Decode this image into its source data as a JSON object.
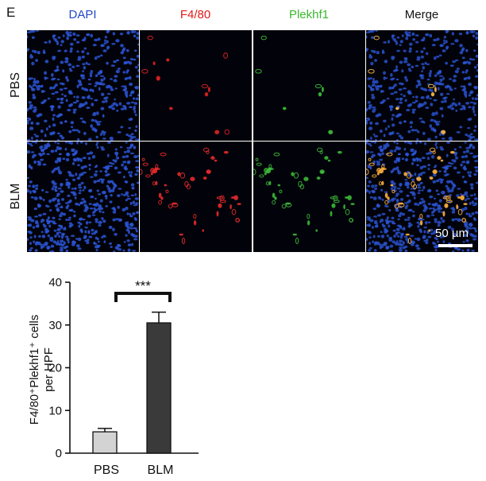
{
  "figure": {
    "panel_letter": "E",
    "columns": [
      {
        "label": "DAPI",
        "color": "#2347c8"
      },
      {
        "label": "F4/80",
        "color": "#e01a1a"
      },
      {
        "label": "Plekhf1",
        "color": "#3ab82e"
      },
      {
        "label": "Merge",
        "color": "#111111"
      }
    ],
    "rows": [
      {
        "label": "PBS"
      },
      {
        "label": "BLM"
      }
    ],
    "scale_bar": "50 µm"
  },
  "chart_data": {
    "type": "bar",
    "categories": [
      "PBS",
      "BLM"
    ],
    "values": [
      5,
      30.5
    ],
    "errors": [
      0.8,
      2.5
    ],
    "colors": [
      "#d3d3d3",
      "#3a3a3a"
    ],
    "ylabel_line1": "F4/80⁺Plekhf1⁺ cells",
    "ylabel_line2": "per HPF",
    "ylim": [
      0,
      40
    ],
    "yticks": [
      0,
      10,
      20,
      30,
      40
    ],
    "significance": "***"
  }
}
